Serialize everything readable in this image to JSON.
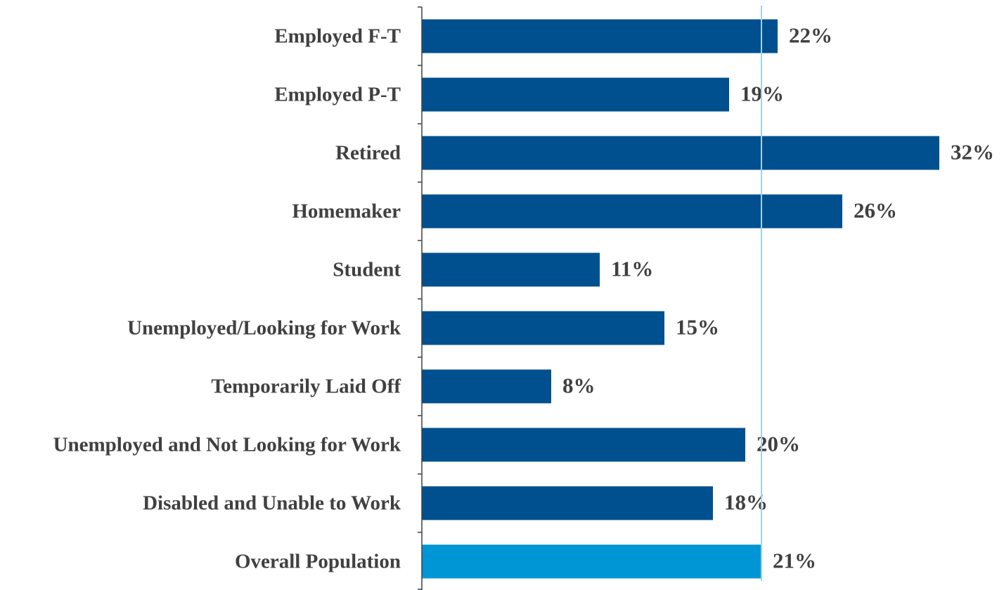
{
  "chart_data": {
    "type": "hbar",
    "categories": [
      "Employed F-T",
      "Employed P-T",
      "Retired",
      "Homemaker",
      "Student",
      "Unemployed/Looking for Work",
      "Temporarily Laid Off",
      "Unemployed and Not Looking for Work",
      "Disabled and Unable to Work",
      "Overall Population"
    ],
    "values": [
      22,
      19,
      32,
      26,
      11,
      15,
      8,
      20,
      18,
      21
    ],
    "value_labels": [
      "22%",
      "19%",
      "32%",
      "26%",
      "11%",
      "15%",
      "8%",
      "20%",
      "18%",
      "21%"
    ],
    "colors": [
      "#00508f",
      "#00508f",
      "#00508f",
      "#00508f",
      "#00508f",
      "#00508f",
      "#00508f",
      "#00508f",
      "#00508f",
      "#0096d6"
    ],
    "reference_color": "#9fd3ea",
    "xlim": [
      0,
      36
    ]
  }
}
